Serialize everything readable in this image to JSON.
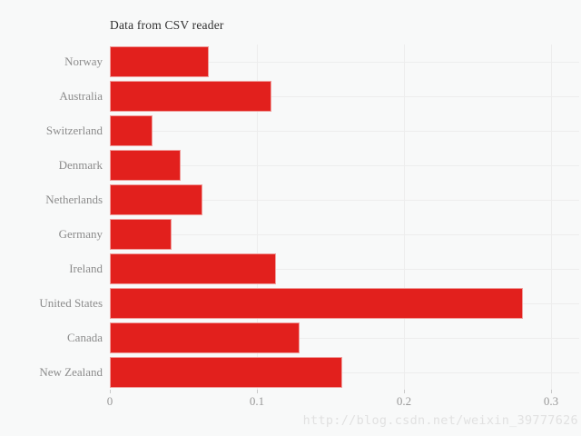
{
  "title": "Data from CSV reader",
  "watermark": "http://blog.csdn.net/weixin_39777626",
  "colors": {
    "background": "#f8f9f9",
    "bar_fill": "#e2201d",
    "bar_edge": "#f09d9b",
    "gridline": "#ededed",
    "tick": "#c9c9c9",
    "axis_label": "#999999",
    "category_label": "#8c8c8c",
    "title": "#2f2f2f",
    "watermark": "#e1e1e1"
  },
  "chart_data": {
    "type": "bar",
    "orientation": "horizontal",
    "title": "Data from CSV reader",
    "categories": [
      "Norway",
      "Australia",
      "Switzerland",
      "Denmark",
      "Netherlands",
      "Germany",
      "Ireland",
      "United States",
      "Canada",
      "New Zealand"
    ],
    "values": [
      0.067,
      0.11,
      0.029,
      0.048,
      0.063,
      0.042,
      0.113,
      0.281,
      0.129,
      0.158
    ],
    "xlabel": "",
    "ylabel": "",
    "xlim": [
      0,
      0.32
    ],
    "xticks": [
      0,
      0.1,
      0.2,
      0.3
    ],
    "xtick_labels": [
      "0",
      "0.1",
      "0.2",
      "0.3"
    ],
    "grid": true,
    "legend": "none"
  }
}
